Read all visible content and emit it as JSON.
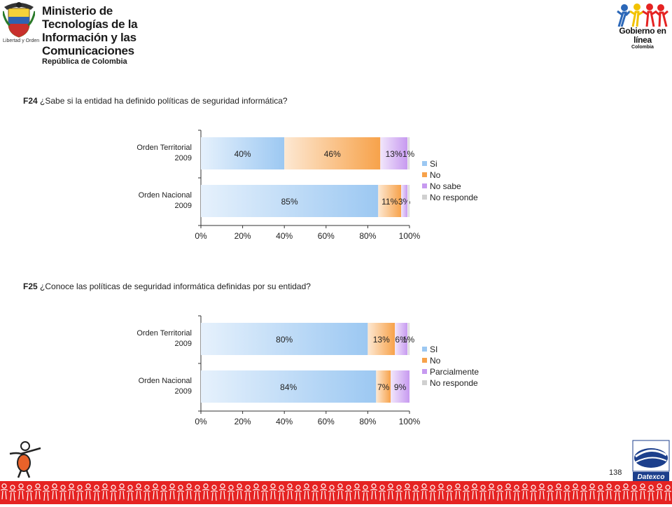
{
  "header": {
    "ministry_line1": "Ministerio de Tecnologías de la",
    "ministry_line2": "Información y las Comunicaciones",
    "ministry_line3": "República de Colombia",
    "crest_caption": "Libertad y Orden",
    "gel_title": "Gobierno en línea",
    "gel_subtitle": "Colombia"
  },
  "questions": [
    {
      "code": "F24",
      "text": "¿Sabe si la entidad ha definido políticas de seguridad informática?"
    },
    {
      "code": "F25",
      "text": "¿Conoce las políticas de seguridad informática definidas por su entidad?"
    }
  ],
  "chart_data": [
    {
      "type": "bar",
      "orientation": "horizontal",
      "stacked": true,
      "categories": [
        [
          "Orden Territorial",
          "2009"
        ],
        [
          "Orden Nacional",
          "2009"
        ]
      ],
      "series": [
        {
          "name": "Si",
          "values": [
            40,
            85
          ],
          "labels": [
            "40%",
            "85%"
          ],
          "color": "#9cc8f2"
        },
        {
          "name": "No",
          "values": [
            46,
            11
          ],
          "labels": [
            "46%",
            "11%"
          ],
          "color": "#f7a24a"
        },
        {
          "name": "No sabe",
          "values": [
            13,
            3
          ],
          "labels": [
            "13%",
            "3%"
          ],
          "color": "#c79af0"
        },
        {
          "name": "No responde",
          "values": [
            1,
            1
          ],
          "labels": [
            "1%",
            ""
          ],
          "color": "#d0d0d0"
        }
      ],
      "xlim": [
        0,
        100
      ],
      "xticks": [
        "0%",
        "20%",
        "40%",
        "60%",
        "80%",
        "100%"
      ],
      "legend": "right",
      "grid": false
    },
    {
      "type": "bar",
      "orientation": "horizontal",
      "stacked": true,
      "categories": [
        [
          "Orden Territorial",
          "2009"
        ],
        [
          "Orden Nacional",
          "2009"
        ]
      ],
      "series": [
        {
          "name": "SI",
          "values": [
            80,
            84
          ],
          "labels": [
            "80%",
            "84%"
          ],
          "color": "#9cc8f2"
        },
        {
          "name": "No",
          "values": [
            13,
            7
          ],
          "labels": [
            "13%",
            "7%"
          ],
          "color": "#f7a24a"
        },
        {
          "name": "Parcialmente",
          "values": [
            6,
            9
          ],
          "labels": [
            "6%",
            "9%"
          ],
          "color": "#c79af0"
        },
        {
          "name": "No responde",
          "values": [
            1,
            0
          ],
          "labels": [
            "1%",
            ""
          ],
          "color": "#d0d0d0"
        }
      ],
      "xlim": [
        0,
        100
      ],
      "xticks": [
        "0%",
        "20%",
        "40%",
        "60%",
        "80%",
        "100%"
      ],
      "legend": "right",
      "grid": false
    }
  ],
  "footer": {
    "page_number": "138",
    "company": "Datexco"
  },
  "colors": {
    "footer_band": "#e52322",
    "datexco_blue": "#1c3f8c"
  }
}
